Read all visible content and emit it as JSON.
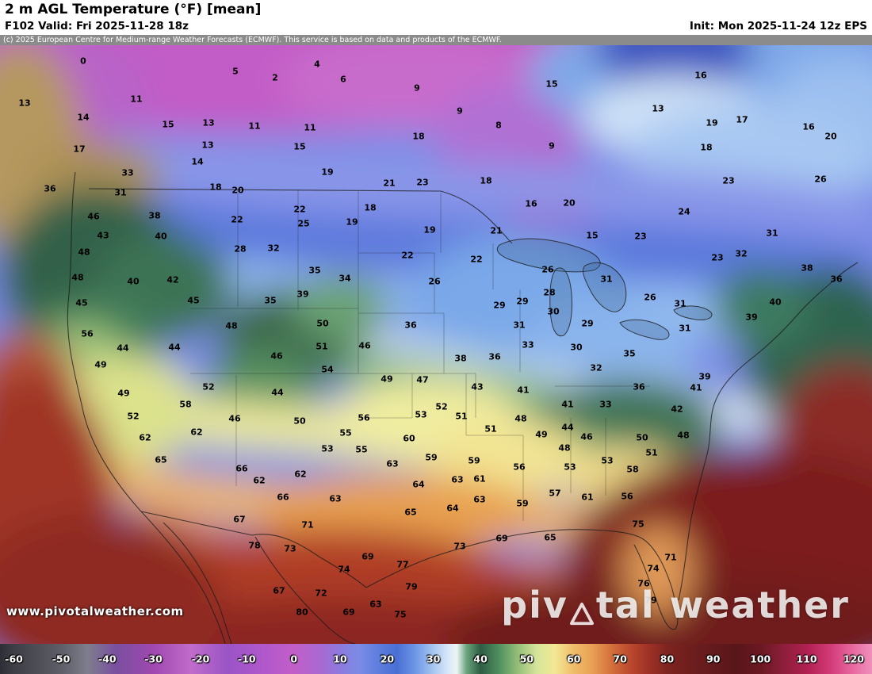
{
  "header": {
    "title": "2 m AGL Temperature (°F) [mean]",
    "valid": "F102 Valid: Fri 2025-11-28 18z",
    "init": "Init: Mon 2025-11-24 12z EPS"
  },
  "copyright": "(c) 2025 European Centre for Medium-range Weather Forecasts (ECMWF). This service is based on data and products of the ECMWF.",
  "map": {
    "watermark": "www.pivotalweather.com",
    "logo": {
      "part1": "piv",
      "part2": "tal weather"
    }
  },
  "colorbar": {
    "ticks": [
      {
        "label": "-60",
        "pct": 1.6
      },
      {
        "label": "-50",
        "pct": 7.0
      },
      {
        "label": "-40",
        "pct": 12.3
      },
      {
        "label": "-30",
        "pct": 17.6
      },
      {
        "label": "-20",
        "pct": 23.0
      },
      {
        "label": "-10",
        "pct": 28.3
      },
      {
        "label": "0",
        "pct": 33.7
      },
      {
        "label": "10",
        "pct": 39.0
      },
      {
        "label": "20",
        "pct": 44.4
      },
      {
        "label": "30",
        "pct": 49.7
      },
      {
        "label": "40",
        "pct": 55.1
      },
      {
        "label": "50",
        "pct": 60.4
      },
      {
        "label": "60",
        "pct": 65.8
      },
      {
        "label": "70",
        "pct": 71.1
      },
      {
        "label": "80",
        "pct": 76.5
      },
      {
        "label": "90",
        "pct": 81.8
      },
      {
        "label": "100",
        "pct": 87.2
      },
      {
        "label": "110",
        "pct": 92.5
      },
      {
        "label": "120",
        "pct": 97.9
      }
    ],
    "stops": [
      {
        "pct": 0,
        "color": "#2e2e36"
      },
      {
        "pct": 1.6,
        "color": "#3e3e46"
      },
      {
        "pct": 7,
        "color": "#5e5e68"
      },
      {
        "pct": 10,
        "color": "#7e7e8c"
      },
      {
        "pct": 13.4,
        "color": "#7a4fa0"
      },
      {
        "pct": 17.6,
        "color": "#a048b0"
      },
      {
        "pct": 21.9,
        "color": "#c06cca"
      },
      {
        "pct": 26.2,
        "color": "#9a54c6"
      },
      {
        "pct": 30.5,
        "color": "#b258cc"
      },
      {
        "pct": 33.7,
        "color": "#c25ec8"
      },
      {
        "pct": 36.9,
        "color": "#a66ad2"
      },
      {
        "pct": 39,
        "color": "#8c7ade"
      },
      {
        "pct": 41.2,
        "color": "#7b8ce6"
      },
      {
        "pct": 43.3,
        "color": "#5f7ede"
      },
      {
        "pct": 45.5,
        "color": "#4a6fd4"
      },
      {
        "pct": 47.6,
        "color": "#6d96e6"
      },
      {
        "pct": 49.7,
        "color": "#a6c6f0"
      },
      {
        "pct": 51.3,
        "color": "#d6e6f8"
      },
      {
        "pct": 52.4,
        "color": "#edf4f4"
      },
      {
        "pct": 53.5,
        "color": "#6aa57c"
      },
      {
        "pct": 55.1,
        "color": "#2e5c44"
      },
      {
        "pct": 57.2,
        "color": "#4f8f5f"
      },
      {
        "pct": 59.4,
        "color": "#94bf78"
      },
      {
        "pct": 61.5,
        "color": "#d4e49a"
      },
      {
        "pct": 63.6,
        "color": "#f2e896"
      },
      {
        "pct": 65.8,
        "color": "#f0bc6a"
      },
      {
        "pct": 67.9,
        "color": "#e8a055"
      },
      {
        "pct": 70.1,
        "color": "#d4703c"
      },
      {
        "pct": 72.2,
        "color": "#bc4a2e"
      },
      {
        "pct": 74.3,
        "color": "#a03226"
      },
      {
        "pct": 76.5,
        "color": "#7e2420"
      },
      {
        "pct": 79.1,
        "color": "#6e1e1e"
      },
      {
        "pct": 81.8,
        "color": "#641a1c"
      },
      {
        "pct": 84.5,
        "color": "#58161a"
      },
      {
        "pct": 87.2,
        "color": "#6b1822"
      },
      {
        "pct": 89.8,
        "color": "#8c1e3a"
      },
      {
        "pct": 92.5,
        "color": "#b02050"
      },
      {
        "pct": 95.2,
        "color": "#d23a78"
      },
      {
        "pct": 97.9,
        "color": "#e86aa0"
      },
      {
        "pct": 100,
        "color": "#f090bc"
      }
    ]
  },
  "chart_data": {
    "type": "heatmap",
    "title": "2 m AGL Temperature (°F) [mean]",
    "forecast_hour": "F102",
    "valid": "Fri 2025-11-28 18z",
    "init": "Mon 2025-11-24 12z EPS",
    "model": "EPS",
    "units": "°F",
    "scale_range": [
      -60,
      120
    ],
    "point_temperatures_f": [
      [
        0,
        105,
        20
      ],
      [
        5,
        297,
        33
      ],
      [
        2,
        347,
        41
      ],
      [
        4,
        400,
        24
      ],
      [
        6,
        433,
        43
      ],
      [
        9,
        526,
        54
      ],
      [
        15,
        696,
        49
      ],
      [
        16,
        884,
        38
      ],
      [
        13,
        31,
        73
      ],
      [
        11,
        172,
        68
      ],
      [
        9,
        580,
        83
      ],
      [
        13,
        830,
        80
      ],
      [
        19,
        898,
        98
      ],
      [
        17,
        936,
        94
      ],
      [
        14,
        105,
        91
      ],
      [
        15,
        212,
        100
      ],
      [
        13,
        263,
        98
      ],
      [
        11,
        321,
        102
      ],
      [
        11,
        391,
        104
      ],
      [
        18,
        528,
        115
      ],
      [
        8,
        629,
        101
      ],
      [
        16,
        1020,
        103
      ],
      [
        20,
        1048,
        115
      ],
      [
        17,
        100,
        131
      ],
      [
        13,
        262,
        126
      ],
      [
        15,
        378,
        128
      ],
      [
        9,
        696,
        127
      ],
      [
        18,
        891,
        129
      ],
      [
        33,
        161,
        161
      ],
      [
        14,
        249,
        147
      ],
      [
        19,
        413,
        160
      ],
      [
        21,
        491,
        174
      ],
      [
        23,
        533,
        173
      ],
      [
        18,
        613,
        171
      ],
      [
        23,
        919,
        171
      ],
      [
        26,
        1035,
        169
      ],
      [
        36,
        63,
        181
      ],
      [
        31,
        152,
        186
      ],
      [
        18,
        272,
        179
      ],
      [
        20,
        300,
        183
      ],
      [
        22,
        378,
        207
      ],
      [
        18,
        467,
        205
      ],
      [
        16,
        670,
        200
      ],
      [
        20,
        718,
        199
      ],
      [
        24,
        863,
        210
      ],
      [
        46,
        118,
        216
      ],
      [
        38,
        195,
        215
      ],
      [
        22,
        299,
        220
      ],
      [
        25,
        383,
        225
      ],
      [
        19,
        444,
        223
      ],
      [
        19,
        542,
        233
      ],
      [
        21,
        626,
        234
      ],
      [
        23,
        808,
        241
      ],
      [
        31,
        974,
        237
      ],
      [
        43,
        130,
        240
      ],
      [
        40,
        203,
        241
      ],
      [
        28,
        303,
        257
      ],
      [
        32,
        345,
        256
      ],
      [
        22,
        514,
        265
      ],
      [
        22,
        601,
        270
      ],
      [
        15,
        747,
        240
      ],
      [
        26,
        691,
        283
      ],
      [
        23,
        905,
        268
      ],
      [
        32,
        935,
        263
      ],
      [
        38,
        1018,
        281
      ],
      [
        36,
        1055,
        295
      ],
      [
        48,
        106,
        261
      ],
      [
        48,
        98,
        293
      ],
      [
        40,
        168,
        298
      ],
      [
        42,
        218,
        296
      ],
      [
        35,
        397,
        284
      ],
      [
        34,
        435,
        294
      ],
      [
        26,
        548,
        298
      ],
      [
        29,
        630,
        328
      ],
      [
        31,
        765,
        295
      ],
      [
        45,
        103,
        325
      ],
      [
        45,
        244,
        322
      ],
      [
        35,
        341,
        322
      ],
      [
        39,
        382,
        314
      ],
      [
        36,
        518,
        353
      ],
      [
        29,
        659,
        323
      ],
      [
        28,
        693,
        312
      ],
      [
        30,
        698,
        336
      ],
      [
        31,
        655,
        353
      ],
      [
        29,
        741,
        351
      ],
      [
        31,
        858,
        326
      ],
      [
        26,
        820,
        318
      ],
      [
        31,
        864,
        357
      ],
      [
        39,
        948,
        343
      ],
      [
        40,
        978,
        324
      ],
      [
        56,
        110,
        364
      ],
      [
        48,
        292,
        354
      ],
      [
        50,
        407,
        351
      ],
      [
        44,
        155,
        382
      ],
      [
        44,
        220,
        381
      ],
      [
        46,
        349,
        392
      ],
      [
        51,
        406,
        380
      ],
      [
        46,
        460,
        379
      ],
      [
        33,
        666,
        378
      ],
      [
        30,
        727,
        381
      ],
      [
        32,
        752,
        407
      ],
      [
        35,
        794,
        389
      ],
      [
        38,
        581,
        395
      ],
      [
        36,
        624,
        393
      ],
      [
        54,
        413,
        409
      ],
      [
        49,
        488,
        421
      ],
      [
        47,
        533,
        422
      ],
      [
        43,
        602,
        431
      ],
      [
        41,
        660,
        435
      ],
      [
        41,
        716,
        453
      ],
      [
        33,
        764,
        453
      ],
      [
        36,
        806,
        431
      ],
      [
        39,
        889,
        418
      ],
      [
        41,
        878,
        432
      ],
      [
        42,
        854,
        459
      ],
      [
        49,
        127,
        403
      ],
      [
        49,
        156,
        439
      ],
      [
        52,
        263,
        431
      ],
      [
        44,
        350,
        438
      ],
      [
        52,
        168,
        468
      ],
      [
        58,
        234,
        453
      ],
      [
        46,
        296,
        471
      ],
      [
        50,
        378,
        474
      ],
      [
        56,
        459,
        470
      ],
      [
        52,
        557,
        456
      ],
      [
        53,
        531,
        466
      ],
      [
        51,
        582,
        468
      ],
      [
        48,
        657,
        471
      ],
      [
        49,
        683,
        491
      ],
      [
        44,
        716,
        482
      ],
      [
        46,
        740,
        494
      ],
      [
        48,
        712,
        508
      ],
      [
        50,
        810,
        495
      ],
      [
        48,
        862,
        492
      ],
      [
        51,
        822,
        514
      ],
      [
        62,
        183,
        495
      ],
      [
        62,
        248,
        488
      ],
      [
        55,
        436,
        489
      ],
      [
        53,
        413,
        509
      ],
      [
        55,
        456,
        510
      ],
      [
        60,
        516,
        496
      ],
      [
        51,
        619,
        484
      ],
      [
        53,
        719,
        532
      ],
      [
        53,
        766,
        524
      ],
      [
        58,
        798,
        535
      ],
      [
        56,
        655,
        532
      ],
      [
        65,
        203,
        523
      ],
      [
        66,
        305,
        534
      ],
      [
        62,
        327,
        549
      ],
      [
        62,
        379,
        541
      ],
      [
        59,
        544,
        520
      ],
      [
        63,
        495,
        528
      ],
      [
        59,
        598,
        524
      ],
      [
        64,
        528,
        554
      ],
      [
        63,
        577,
        548
      ],
      [
        61,
        605,
        547
      ],
      [
        66,
        357,
        570
      ],
      [
        63,
        423,
        572
      ],
      [
        63,
        605,
        573
      ],
      [
        59,
        659,
        578
      ],
      [
        57,
        700,
        565
      ],
      [
        61,
        741,
        570
      ],
      [
        56,
        791,
        569
      ],
      [
        65,
        518,
        589
      ],
      [
        64,
        571,
        584
      ],
      [
        67,
        302,
        598
      ],
      [
        71,
        388,
        605
      ],
      [
        69,
        633,
        622
      ],
      [
        65,
        694,
        621
      ],
      [
        73,
        580,
        632
      ],
      [
        75,
        805,
        604
      ],
      [
        78,
        321,
        631
      ],
      [
        73,
        366,
        635
      ],
      [
        69,
        464,
        645
      ],
      [
        74,
        434,
        661
      ],
      [
        77,
        508,
        655
      ],
      [
        79,
        519,
        683
      ],
      [
        67,
        352,
        688
      ],
      [
        72,
        405,
        691
      ],
      [
        80,
        381,
        715
      ],
      [
        69,
        440,
        715
      ],
      [
        63,
        474,
        705
      ],
      [
        75,
        505,
        718
      ],
      [
        71,
        846,
        646
      ],
      [
        74,
        824,
        660
      ],
      [
        76,
        812,
        679
      ],
      [
        79,
        821,
        700
      ]
    ]
  }
}
